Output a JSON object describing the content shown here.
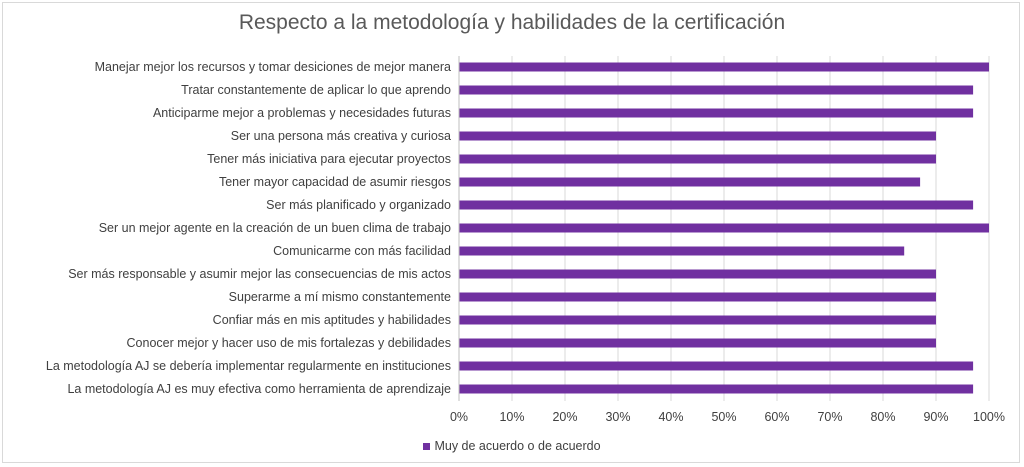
{
  "chart_data": {
    "type": "bar",
    "orientation": "horizontal",
    "title": "Respecto a la metodología y habilidades de la certificación",
    "categories": [
      "Manejar mejor los recursos y tomar desiciones de mejor manera",
      "Tratar constantemente de aplicar lo que aprendo",
      "Anticiparme mejor a problemas y necesidades futuras",
      "Ser una persona más creativa y curiosa",
      "Tener más iniciativa para ejecutar proyectos",
      "Tener mayor capacidad de asumir riesgos",
      "Ser más planificado y organizado",
      "Ser un mejor agente en la creación de un buen clima de trabajo",
      "Comunicarme con más facilidad",
      "Ser más responsable y asumir mejor las consecuencias de mis actos",
      "Superarme a mí mismo constantemente",
      "Confiar más en mis aptitudes y habilidades",
      "Conocer mejor y hacer uso de mis fortalezas y debilidades",
      "La metodología AJ se debería implementar regularmente en instituciones",
      "La metodología AJ es muy efectiva como herramienta de aprendizaje"
    ],
    "series": [
      {
        "name": "Muy de acuerdo o de acuerdo",
        "color": "#7030a0",
        "values": [
          100,
          97,
          97,
          90,
          90,
          87,
          97,
          100,
          84,
          90,
          90,
          90,
          90,
          97,
          97
        ]
      }
    ],
    "xlim": [
      0,
      100
    ],
    "xticks": [
      "0%",
      "10%",
      "20%",
      "30%",
      "40%",
      "50%",
      "60%",
      "70%",
      "80%",
      "90%",
      "100%"
    ],
    "grid": "vertical",
    "legend_position": "bottom"
  }
}
